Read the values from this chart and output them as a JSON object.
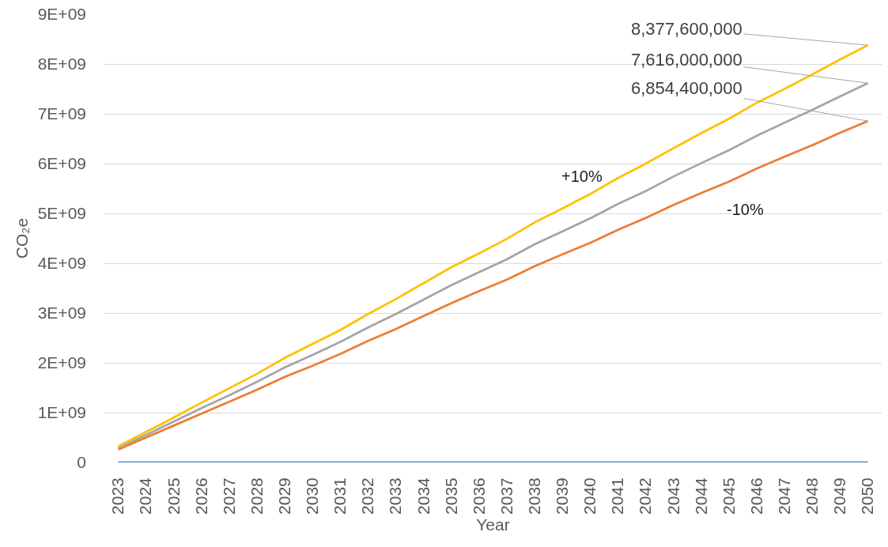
{
  "chart_data": {
    "type": "line",
    "xlabel": "Year",
    "ylabel": "CO₂e",
    "categories": [
      "2023",
      "2024",
      "2025",
      "2026",
      "2027",
      "2028",
      "2029",
      "2030",
      "2031",
      "2032",
      "2033",
      "2034",
      "2035",
      "2036",
      "2037",
      "2038",
      "2039",
      "2040",
      "2041",
      "2042",
      "2043",
      "2044",
      "2045",
      "2046",
      "2047",
      "2048",
      "2049",
      "2050"
    ],
    "ylim": [
      0,
      9000000000
    ],
    "yticks": [
      0,
      {
        "value": 1000000000,
        "label": "1E+09"
      },
      {
        "value": 2000000000,
        "label": "2E+09"
      },
      {
        "value": 3000000000,
        "label": "3E+09"
      },
      {
        "value": 4000000000,
        "label": "4E+09"
      },
      {
        "value": 5000000000,
        "label": "5E+09"
      },
      {
        "value": 6000000000,
        "label": "6E+09"
      },
      {
        "value": 7000000000,
        "label": "7E+09"
      },
      {
        "value": 8000000000,
        "label": "8E+09"
      },
      {
        "value": 9000000000,
        "label": "9E+09"
      }
    ],
    "grid": "y",
    "legend": false,
    "line_style": "solid",
    "series": [
      {
        "color": "#4472c4",
        "values": [
          0,
          0,
          0,
          0,
          0,
          0,
          0,
          0,
          0,
          0,
          0,
          0,
          0,
          0,
          0,
          0,
          0,
          0,
          0,
          0,
          0,
          0,
          0,
          0,
          0,
          0,
          0,
          0
        ]
      },
      {
        "name": "-10%",
        "color": "#ed7d31",
        "values": [
          260000000,
          500000000,
          740000000,
          980000000,
          1220000000,
          1460000000,
          1720000000,
          1940000000,
          2180000000,
          2440000000,
          2680000000,
          2940000000,
          3200000000,
          3440000000,
          3670000000,
          3940000000,
          4180000000,
          4410000000,
          4670000000,
          4910000000,
          5170000000,
          5410000000,
          5640000000,
          5900000000,
          6140000000,
          6370000000,
          6620000000,
          6854400000
        ],
        "value_labels": [
          null,
          null,
          null,
          null,
          null,
          null,
          null,
          null,
          null,
          null,
          null,
          null,
          null,
          null,
          null,
          null,
          null,
          null,
          null,
          null,
          null,
          null,
          null,
          null,
          null,
          null,
          null,
          "6,854,400,000"
        ]
      },
      {
        "color": "#a5a5a5",
        "values": [
          290000000,
          550000000,
          820000000,
          1090000000,
          1350000000,
          1620000000,
          1910000000,
          2160000000,
          2420000000,
          2710000000,
          2980000000,
          3270000000,
          3560000000,
          3820000000,
          4080000000,
          4380000000,
          4640000000,
          4900000000,
          5190000000,
          5450000000,
          5740000000,
          6010000000,
          6270000000,
          6560000000,
          6820000000,
          7080000000,
          7350000000,
          7616000000
        ],
        "value_labels": [
          null,
          null,
          null,
          null,
          null,
          null,
          null,
          null,
          null,
          null,
          null,
          null,
          null,
          null,
          null,
          null,
          null,
          null,
          null,
          null,
          null,
          null,
          null,
          null,
          null,
          null,
          null,
          "7,616,000,000"
        ]
      },
      {
        "name": "+10%",
        "color": "#ffc000",
        "values": [
          320000000,
          610000000,
          900000000,
          1200000000,
          1490000000,
          1780000000,
          2100000000,
          2380000000,
          2660000000,
          2980000000,
          3280000000,
          3600000000,
          3920000000,
          4200000000,
          4490000000,
          4820000000,
          5100000000,
          5390000000,
          5710000000,
          6000000000,
          6310000000,
          6610000000,
          6900000000,
          7220000000,
          7500000000,
          7790000000,
          8090000000,
          8377600000
        ],
        "value_labels": [
          null,
          null,
          null,
          null,
          null,
          null,
          null,
          null,
          null,
          null,
          null,
          null,
          null,
          null,
          null,
          null,
          null,
          null,
          null,
          null,
          null,
          null,
          null,
          null,
          null,
          null,
          null,
          "8,377,600,000"
        ]
      }
    ]
  }
}
